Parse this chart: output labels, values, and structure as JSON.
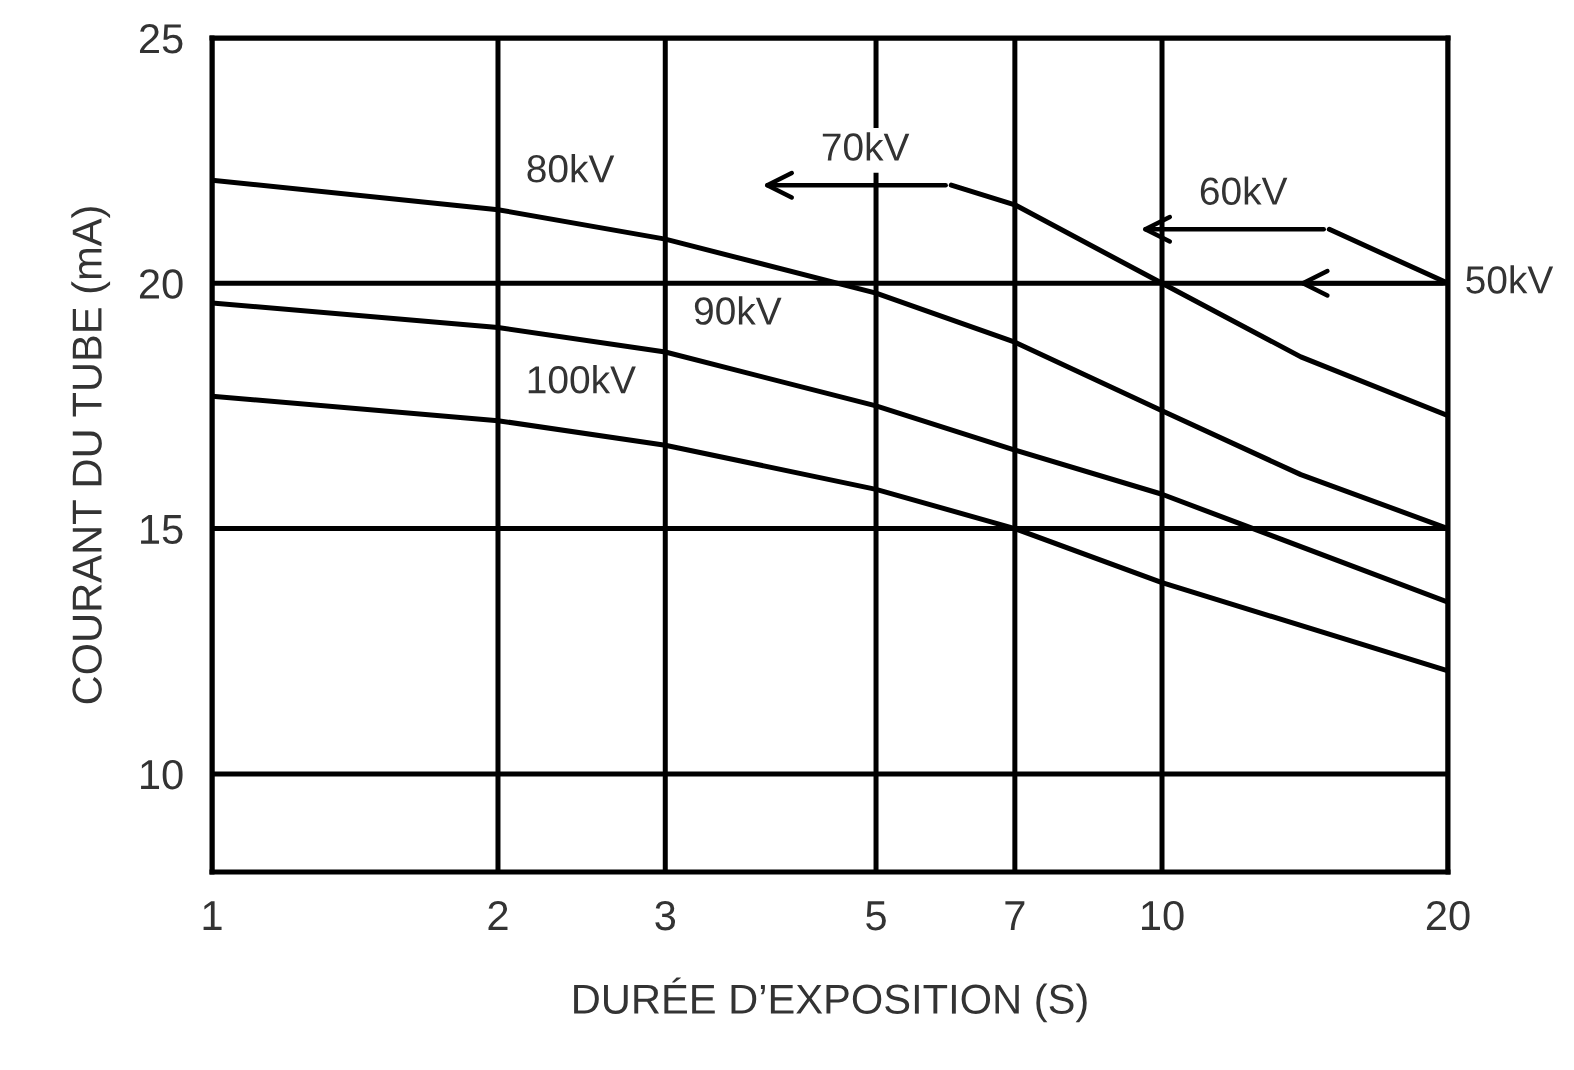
{
  "chart_data": {
    "type": "line",
    "xlabel": "DURÉE D’EXPOSITION (S)",
    "ylabel": "COURANT DU TUBE (mA)",
    "log": "x",
    "xlim": [
      1,
      20
    ],
    "xticks": [
      1,
      2,
      3,
      5,
      7,
      10,
      20
    ],
    "ylim": [
      8,
      25
    ],
    "yticks": [
      10,
      15,
      20,
      25
    ],
    "grid": true,
    "marker": "none",
    "line_style": "solid",
    "series": [
      {
        "color": "#000000",
        "x": [
          1,
          2,
          3,
          5,
          7,
          10,
          14,
          20
        ],
        "values": [
          22.1,
          21.5,
          20.9,
          19.8,
          18.8,
          17.4,
          16.1,
          15.0
        ]
      },
      {
        "color": "#000000",
        "x": [
          6,
          7,
          10,
          14,
          20
        ],
        "values": [
          22.0,
          21.6,
          20.0,
          18.5,
          17.3
        ]
      },
      {
        "color": "#000000",
        "x": [
          15,
          20
        ],
        "values": [
          21.1,
          20.0
        ]
      },
      {
        "color": "#000000",
        "x": [
          1,
          2,
          3,
          5,
          7,
          10,
          20
        ],
        "values": [
          19.6,
          19.1,
          18.6,
          17.5,
          16.6,
          15.7,
          13.5
        ]
      },
      {
        "color": "#000000",
        "x": [
          1,
          2,
          3,
          5,
          7,
          10,
          20
        ],
        "values": [
          17.7,
          17.2,
          16.7,
          15.8,
          15.0,
          13.9,
          12.1
        ]
      }
    ],
    "annotations": [
      {
        "text": "80kV",
        "x": 2,
        "y": 21.5
      },
      {
        "text": "70kV",
        "x": 6,
        "y": 22.0
      },
      {
        "text": "60kV",
        "x": 15,
        "y": 21.1
      },
      {
        "text": "50kV",
        "x": 20,
        "y": 20
      },
      {
        "text": "90kV",
        "x": 3,
        "y": 18.6
      },
      {
        "text": "100kV",
        "x": 2,
        "y": 17.2
      }
    ]
  }
}
